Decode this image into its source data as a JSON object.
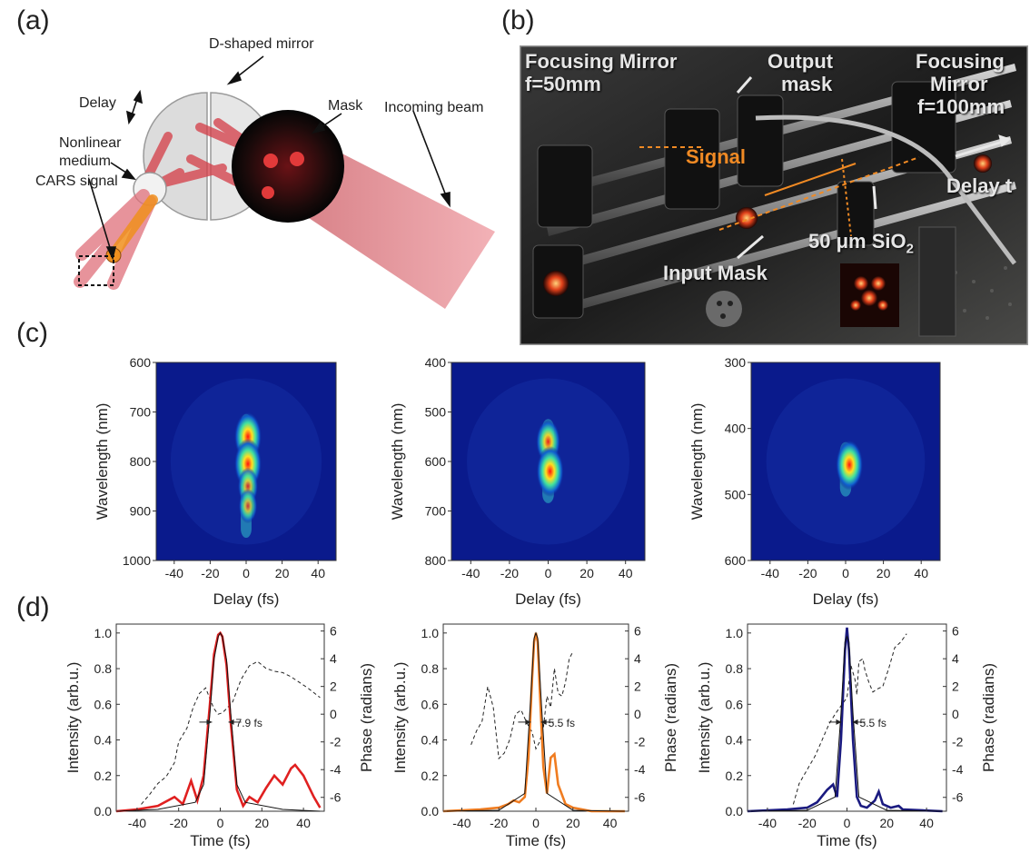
{
  "panels": {
    "a": "(a)",
    "b": "(b)",
    "c": "(c)",
    "d": "(d)"
  },
  "diagram": {
    "labels": {
      "mirror": "D-shaped mirror",
      "delay": "Delay",
      "mask": "Mask",
      "medium_line1": "Nonlinear",
      "medium_line2": "medium",
      "beam": "Incoming beam",
      "cars": "CARS signal"
    }
  },
  "photo": {
    "labels": {
      "focusing_left_1": "Focusing Mirror",
      "focusing_left_2": "f=50mm",
      "output_1": "Output",
      "output_2": "mask",
      "focusing_right_1": "Focusing",
      "focusing_right_2": "Mirror",
      "focusing_right_3": "f=100mm",
      "signal": "Signal",
      "delay": "Delay t",
      "sio2_main": "50 μm SiO",
      "sio2_sub": "2",
      "input_mask": "Input Mask"
    }
  },
  "chart_data": [
    {
      "type": "heatmap",
      "xlabel": "Delay (fs)",
      "ylabel": "Wavelength (nm)",
      "xlim": [
        -50,
        50
      ],
      "ylim": [
        600,
        1000
      ],
      "x_ticks": [
        "-40",
        "-20",
        "0",
        "20",
        "40"
      ],
      "y_ticks": [
        "600",
        "700",
        "800",
        "900",
        "1000"
      ],
      "y_tick_values": [
        600,
        700,
        800,
        900,
        1000
      ],
      "hotspots": [
        {
          "delay": 1,
          "wavelength": 750,
          "level": 1.0
        },
        {
          "delay": 1,
          "wavelength": 805,
          "level": 1.0
        },
        {
          "delay": 1,
          "wavelength": 850,
          "level": 0.55
        },
        {
          "delay": 1,
          "wavelength": 890,
          "level": 0.45
        }
      ]
    },
    {
      "type": "heatmap",
      "xlabel": "Delay (fs)",
      "ylabel": "Wavelength (nm)",
      "xlim": [
        -50,
        50
      ],
      "ylim": [
        400,
        800
      ],
      "x_ticks": [
        "-40",
        "-20",
        "0",
        "20",
        "40"
      ],
      "y_ticks": [
        "400",
        "500",
        "600",
        "700",
        "800"
      ],
      "y_tick_values": [
        400,
        500,
        600,
        700,
        800
      ],
      "hotspots": [
        {
          "delay": 0,
          "wavelength": 560,
          "level": 0.8
        },
        {
          "delay": 1,
          "wavelength": 620,
          "level": 1.0
        }
      ]
    },
    {
      "type": "heatmap",
      "xlabel": "Delay (fs)",
      "ylabel": "Wavelength (nm)",
      "xlim": [
        -50,
        50
      ],
      "ylim": [
        300,
        600
      ],
      "x_ticks": [
        "-40",
        "-20",
        "0",
        "20",
        "40"
      ],
      "y_ticks": [
        "300",
        "400",
        "500",
        "600"
      ],
      "y_tick_values": [
        300,
        400,
        500,
        600
      ],
      "hotspots": [
        {
          "delay": 2,
          "wavelength": 455,
          "level": 1.0
        }
      ]
    },
    {
      "type": "line",
      "xlabel": "Time (fs)",
      "ylabel": "Intensity (arb.u.)",
      "y2label": "Phase (radians)",
      "xlim": [
        -50,
        50
      ],
      "ylim": [
        0,
        1.05
      ],
      "y2lim": [
        -7,
        6.5
      ],
      "x_ticks": [
        "-40",
        "-20",
        "0",
        "20",
        "40"
      ],
      "y_ticks": [
        "0.0",
        "0.2",
        "0.4",
        "0.6",
        "0.8",
        "1.0"
      ],
      "y2_ticks": [
        "6",
        "4",
        "2",
        "0",
        "-2",
        "-4",
        "-6"
      ],
      "annotation": "7.9 fs",
      "fwhm_fs": 7.9,
      "color": "#e02020",
      "series": [
        {
          "x": [
            -50,
            -40,
            -30,
            -22,
            -18,
            -14,
            -11,
            -8,
            -5,
            -3,
            -1,
            0,
            1,
            3,
            5,
            8,
            11,
            14,
            18,
            22,
            26,
            30,
            34,
            36,
            40,
            45,
            48
          ],
          "y": [
            0,
            0.01,
            0.03,
            0.08,
            0.04,
            0.17,
            0.06,
            0.2,
            0.6,
            0.88,
            0.99,
            1.0,
            0.98,
            0.82,
            0.5,
            0.12,
            0.03,
            0.08,
            0.05,
            0.13,
            0.2,
            0.15,
            0.24,
            0.26,
            0.2,
            0.08,
            0.02
          ]
        },
        {
          "x": [
            -50,
            -30,
            -12,
            -8,
            -5,
            -3,
            -1,
            0,
            1,
            3,
            5,
            8,
            12,
            30,
            48
          ],
          "y": [
            0,
            0.01,
            0.05,
            0.15,
            0.55,
            0.85,
            0.98,
            1.0,
            0.98,
            0.85,
            0.55,
            0.15,
            0.05,
            0.01,
            0
          ]
        },
        {
          "x": [
            -38,
            -34,
            -30,
            -26,
            -22,
            -20,
            -16,
            -13,
            -10,
            -7,
            -5,
            -3,
            -1,
            1,
            3,
            6,
            10,
            14,
            18,
            22,
            26,
            30,
            34,
            38,
            42,
            48
          ],
          "y": [
            -6.5,
            -5.8,
            -5,
            -4.5,
            -3.5,
            -2,
            -1,
            0.5,
            1.5,
            1.9,
            1.1,
            0.4,
            0,
            0.1,
            0.4,
            0.9,
            2.5,
            3.5,
            3.8,
            3.3,
            3.1,
            3.0,
            2.7,
            2.3,
            1.9,
            1.2
          ]
        }
      ]
    },
    {
      "type": "line",
      "xlabel": "Time (fs)",
      "ylabel": "Intensity (arb.u.)",
      "y2label": "Phase (radians)",
      "xlim": [
        -50,
        50
      ],
      "ylim": [
        0,
        1.05
      ],
      "y2lim": [
        -7,
        6.5
      ],
      "x_ticks": [
        "-40",
        "-20",
        "0",
        "20",
        "40"
      ],
      "y_ticks": [
        "0.0",
        "0.2",
        "0.4",
        "0.6",
        "0.8",
        "1.0"
      ],
      "y2_ticks": [
        "6",
        "4",
        "2",
        "0",
        "-2",
        "-4",
        "-6"
      ],
      "annotation": "5.5 fs",
      "fwhm_fs": 5.5,
      "color": "#f07c20",
      "series": [
        {
          "x": [
            -50,
            -30,
            -20,
            -15,
            -12,
            -9,
            -6,
            -4,
            -2,
            -1,
            0,
            1,
            2,
            4,
            6,
            8,
            10,
            12,
            16,
            20,
            30,
            48
          ],
          "y": [
            0,
            0.01,
            0.02,
            0.04,
            0.06,
            0.05,
            0.08,
            0.3,
            0.75,
            0.95,
            1.0,
            0.95,
            0.7,
            0.25,
            0.1,
            0.3,
            0.32,
            0.15,
            0.04,
            0.02,
            0,
            0
          ]
        },
        {
          "x": [
            -50,
            -20,
            -6,
            -3,
            -1,
            0,
            1,
            3,
            6,
            20,
            48
          ],
          "y": [
            0,
            0.005,
            0.1,
            0.6,
            0.97,
            1.0,
            0.97,
            0.6,
            0.1,
            0.005,
            0
          ]
        },
        {
          "x": [
            -35,
            -32,
            -29,
            -26,
            -23,
            -20,
            -17,
            -14,
            -11,
            -8,
            -5,
            -2,
            0,
            2,
            4,
            6,
            8,
            10,
            12,
            14,
            16,
            18,
            20
          ],
          "y": [
            -2.2,
            -1.2,
            -0.5,
            2.0,
            0.5,
            -3.2,
            -2.8,
            -1.8,
            0,
            0.3,
            -0.6,
            -1.3,
            -2.5,
            -2.0,
            -1.0,
            1.3,
            0.5,
            3.3,
            1.5,
            1.3,
            2.3,
            4.0,
            4.5
          ]
        }
      ]
    },
    {
      "type": "line",
      "xlabel": "Time (fs)",
      "ylabel": "Intensity (arb.u.)",
      "y2label": "Phase (radians)",
      "xlim": [
        -50,
        50
      ],
      "ylim": [
        0,
        1.05
      ],
      "y2lim": [
        -7,
        6.5
      ],
      "x_ticks": [
        "-40",
        "-20",
        "0",
        "20",
        "40"
      ],
      "y_ticks": [
        "0.0",
        "0.2",
        "0.4",
        "0.6",
        "0.8",
        "1.0"
      ],
      "y2_ticks": [
        "6",
        "4",
        "2",
        "0",
        "-2",
        "-4",
        "-6"
      ],
      "annotation": "5.5 fs",
      "fwhm_fs": 5.5,
      "color": "#1a1a80",
      "series": [
        {
          "x": [
            -50,
            -40,
            -30,
            -20,
            -15,
            -10,
            -7,
            -5,
            -3,
            -1,
            0,
            1,
            3,
            5,
            7,
            10,
            14,
            16,
            18,
            22,
            26,
            28,
            48
          ],
          "y": [
            0,
            0.005,
            0.01,
            0.02,
            0.05,
            0.12,
            0.15,
            0.08,
            0.4,
            0.9,
            1.03,
            0.9,
            0.4,
            0.08,
            0.03,
            0.02,
            0.06,
            0.11,
            0.04,
            0.02,
            0.03,
            0.01,
            0
          ]
        },
        {
          "x": [
            -50,
            -20,
            -6,
            -3,
            -1,
            0,
            1,
            3,
            6,
            20,
            48
          ],
          "y": [
            0,
            0.005,
            0.08,
            0.55,
            0.95,
            0.98,
            0.95,
            0.55,
            0.08,
            0.005,
            0
          ]
        },
        {
          "x": [
            -27,
            -24,
            -20,
            -16,
            -12,
            -9,
            -6,
            -4,
            -2,
            0,
            2,
            4,
            5,
            6,
            8,
            9,
            11,
            13,
            15,
            18,
            21,
            24,
            27,
            30
          ],
          "y": [
            -6.5,
            -5,
            -4,
            -3,
            -1.7,
            -0.7,
            0,
            0.4,
            0.8,
            1.2,
            3.5,
            2.5,
            1.4,
            3.8,
            4.0,
            3.2,
            2.3,
            1.6,
            1.8,
            2.0,
            3.3,
            4.8,
            5.2,
            5.8
          ]
        }
      ]
    }
  ]
}
